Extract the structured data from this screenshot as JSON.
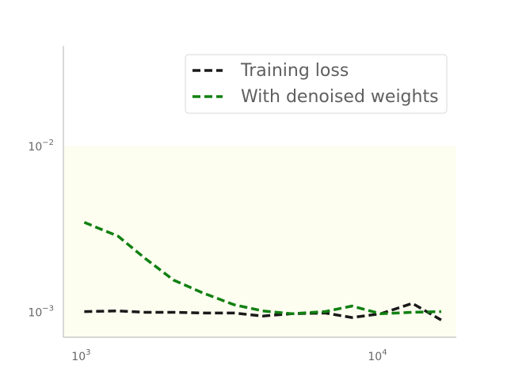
{
  "chart_data": {
    "type": "line",
    "title": "",
    "xlabel": "",
    "ylabel": "",
    "xscale": "log",
    "yscale": "log",
    "xlim": [
      850,
      18000
    ],
    "ylim": [
      0.0007,
      0.04
    ],
    "highlight_band": {
      "y": [
        0.0007,
        0.01
      ],
      "color": "#fdfdf0"
    },
    "grid": false,
    "legend_position": "top-right",
    "x_ticks": [
      {
        "value": 1000,
        "base": "10",
        "exp": "3"
      },
      {
        "value": 10000,
        "base": "10",
        "exp": "4"
      }
    ],
    "y_ticks": [
      {
        "value": 0.001,
        "base": "10",
        "exp": "−3"
      },
      {
        "value": 0.01,
        "base": "10",
        "exp": "−2"
      }
    ],
    "series": [
      {
        "name": "Training loss",
        "color": "#1a1a1a",
        "x": [
          1000,
          1300,
          1600,
          2000,
          2500,
          3200,
          4000,
          5000,
          6500,
          8000,
          10000,
          12800,
          16000
        ],
        "y": [
          0.001,
          0.00101,
          0.00099,
          0.00099,
          0.00098,
          0.00098,
          0.00094,
          0.00097,
          0.00098,
          0.00092,
          0.00097,
          0.00112,
          0.00089
        ]
      },
      {
        "name": "With denoised weights",
        "color": "#118011",
        "x": [
          1000,
          1300,
          1600,
          2000,
          2500,
          3200,
          4000,
          5000,
          6500,
          8000,
          10000,
          12800,
          16000
        ],
        "y": [
          0.00345,
          0.00285,
          0.0021,
          0.00155,
          0.0013,
          0.0011,
          0.00101,
          0.00097,
          0.001,
          0.00108,
          0.00097,
          0.00099,
          0.001
        ]
      }
    ]
  }
}
